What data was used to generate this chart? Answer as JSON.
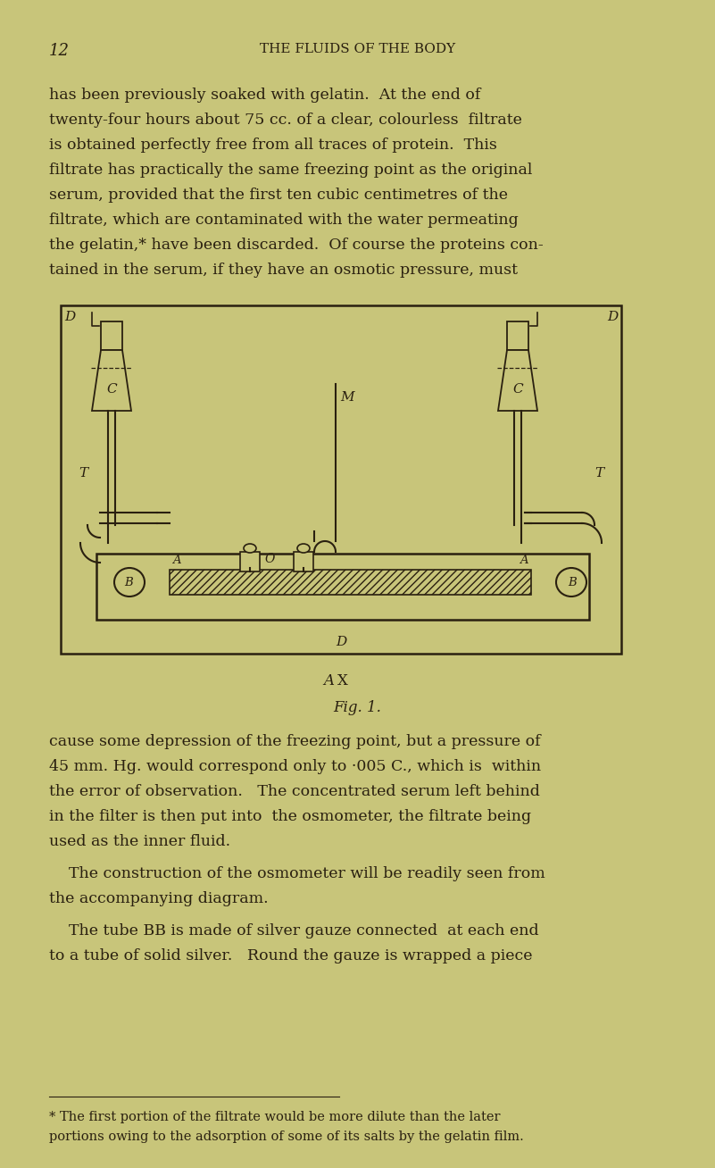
{
  "bg_color": "#c8c57a",
  "text_color": "#2a2010",
  "page_number": "12",
  "header": "THE FLUIDS OF THE BODY",
  "para1_lines": [
    "has been previously soaked with gelatin.  At the end of",
    "twenty-four hours about 75 cc. of a clear, colourless  filtrate",
    "is obtained perfectly free from all traces of protein.  This",
    "filtrate has practically the same freezing point as the original",
    "serum, provided that the first ten cubic centimetres of the",
    "filtrate, which are contaminated with the water permeating",
    "the gelatin,* have been discarded.  Of course the proteins con-",
    "tained in the serum, if they have an osmotic pressure, must"
  ],
  "fig_caption": "Fig. 1.",
  "ax_label": "A",
  "x_label": "X",
  "para2_lines": [
    "cause some depression of the freezing point, but a pressure of",
    "45 mm. Hg. would correspond only to ·005 C., which is  within",
    "the error of observation.   The concentrated serum left behind",
    "in the filter is then put into  the osmometer, the filtrate being",
    "used as the inner fluid."
  ],
  "para3_lines": [
    "    The construction of the osmometer will be readily seen from",
    "the accompanying diagram."
  ],
  "para4_lines": [
    "    The tube BB is made of silver gauze connected  at each end",
    "to a tube of solid silver.   Round the gauze is wrapped a piece"
  ],
  "footnote": [
    "* The first portion of the filtrate would be more dilute than the later",
    "portions owing to the adsorption of some of its salts by the gelatin film."
  ],
  "line_color": "#2a2010"
}
